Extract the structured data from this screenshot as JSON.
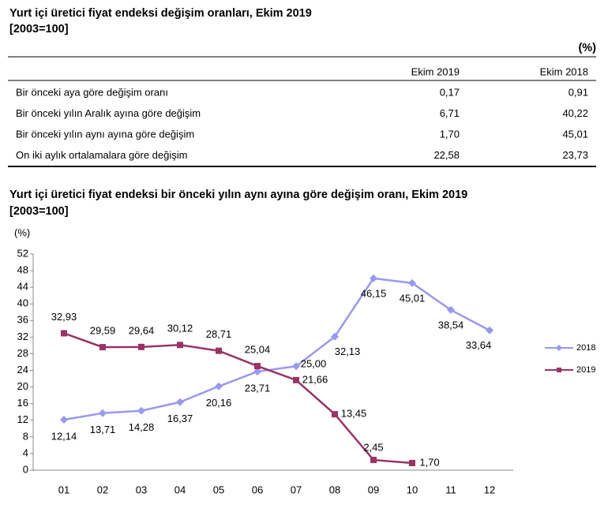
{
  "header": {
    "title": "Yurt içi üretici fiyat endeksi değişim oranları, Ekim 2019",
    "subtitle": "[2003=100]",
    "unit": "(%)"
  },
  "table": {
    "columns": [
      "Ekim 2019",
      "Ekim 2018"
    ],
    "rows": [
      [
        "Bir önceki aya göre değişim oranı",
        "0,17",
        "0,91"
      ],
      [
        "Bir önceki yılın Aralık ayına göre değişim",
        "6,71",
        "40,22"
      ],
      [
        "Bir önceki yılın aynı ayına göre değişim",
        "1,70",
        "45,01"
      ],
      [
        "On iki aylık ortalamalara göre değişim",
        "22,58",
        "23,73"
      ]
    ]
  },
  "chart_data": {
    "type": "line",
    "title": "Yurt içi üretici fiyat endeksi bir önceki yılın aynı ayına göre değişim oranı, Ekim 2019",
    "subtitle": "[2003=100]",
    "y_label": "(%)",
    "categories": [
      "01",
      "02",
      "03",
      "04",
      "05",
      "06",
      "07",
      "08",
      "09",
      "10",
      "11",
      "12"
    ],
    "series": [
      {
        "name": "2018",
        "color": "#9999ee",
        "marker": "diamond",
        "values": [
          12.14,
          13.71,
          14.28,
          16.37,
          20.16,
          23.71,
          25.0,
          32.13,
          46.15,
          45.01,
          38.54,
          33.64
        ],
        "value_labels": [
          "12,14",
          "13,71",
          "14,28",
          "16,37",
          "20,16",
          "23,71",
          "25,00",
          "32,13",
          "46,15",
          "45,01",
          "38,54",
          "33,64"
        ]
      },
      {
        "name": "2019",
        "color": "#993366",
        "marker": "square",
        "values": [
          32.93,
          29.59,
          29.64,
          30.12,
          28.71,
          25.04,
          21.66,
          13.45,
          2.45,
          1.7,
          null,
          null
        ],
        "value_labels": [
          "32,93",
          "29,59",
          "29,64",
          "30,12",
          "28,71",
          "25,04",
          "21,66",
          "13,45",
          "2,45",
          "1,70",
          null,
          null
        ]
      }
    ],
    "ylim": [
      0,
      52
    ],
    "yticks": [
      0,
      4,
      8,
      12,
      16,
      20,
      24,
      28,
      32,
      36,
      40,
      44,
      48,
      52
    ],
    "grid": false,
    "legend": "right"
  }
}
